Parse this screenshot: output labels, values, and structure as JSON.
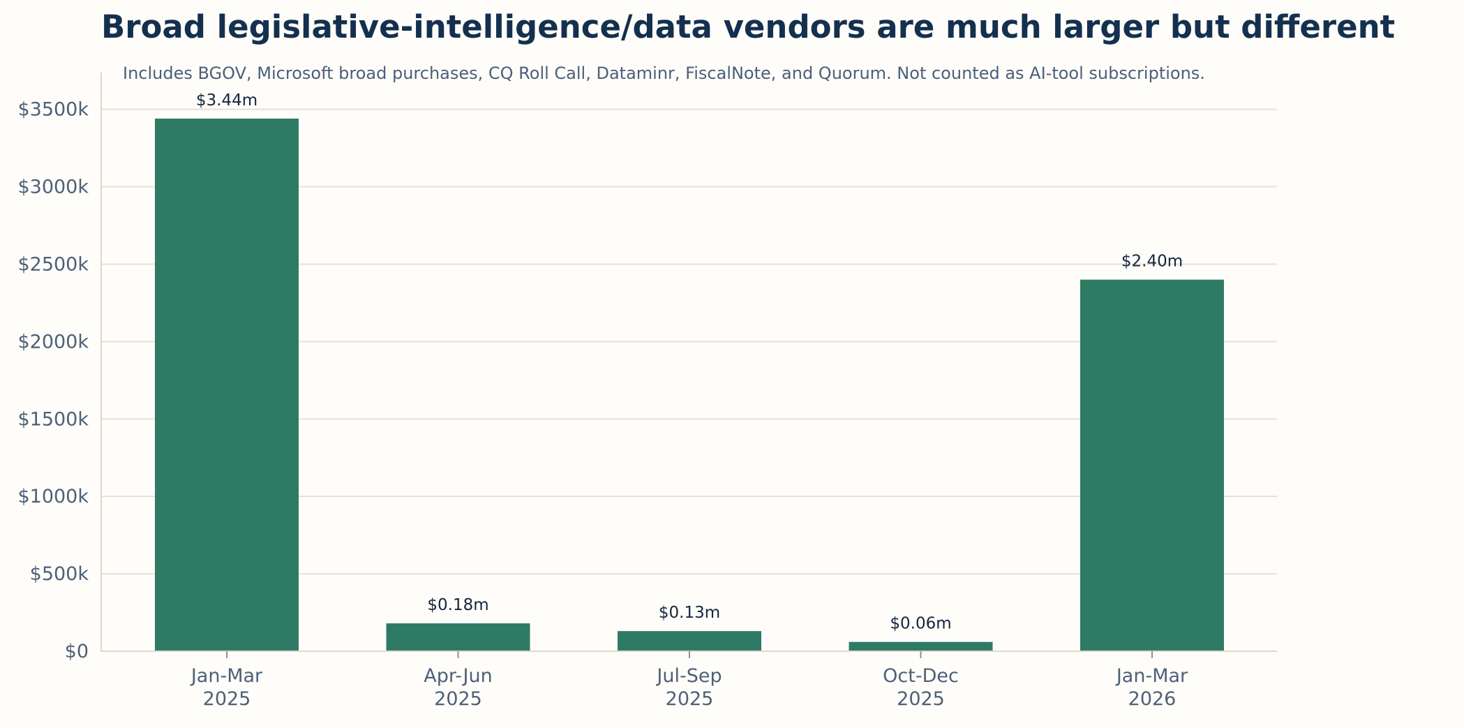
{
  "chart_data": {
    "type": "bar",
    "title": "Broad legislative-intelligence/data vendors are much larger but different",
    "subtitle": "Includes BGOV, Microsoft broad purchases, CQ Roll Call, Dataminr, FiscalNote, and Quorum. Not counted as AI-tool subscriptions.",
    "xlabel": "",
    "ylabel": "",
    "categories": [
      [
        "Jan-Mar",
        "2025"
      ],
      [
        "Apr-Jun",
        "2025"
      ],
      [
        "Jul-Sep",
        "2025"
      ],
      [
        "Oct-Dec",
        "2025"
      ],
      [
        "Jan-Mar",
        "2026"
      ]
    ],
    "values": [
      3440000,
      180000,
      130000,
      60000,
      2400000
    ],
    "data_labels": [
      "$3.44m",
      "$0.18m",
      "$0.13m",
      "$0.06m",
      "$2.40m"
    ],
    "y_ticks": [
      0,
      500000,
      1000000,
      1500000,
      2000000,
      2500000,
      3000000,
      3500000
    ],
    "y_tick_labels": [
      "$0",
      "$500k",
      "$1000k",
      "$1500k",
      "$2000k",
      "$2500k",
      "$3000k",
      "$3500k"
    ],
    "ylim": [
      0,
      3620000
    ],
    "grid": "horizontal",
    "legend": "none",
    "bar_color": "#2f7a65"
  }
}
